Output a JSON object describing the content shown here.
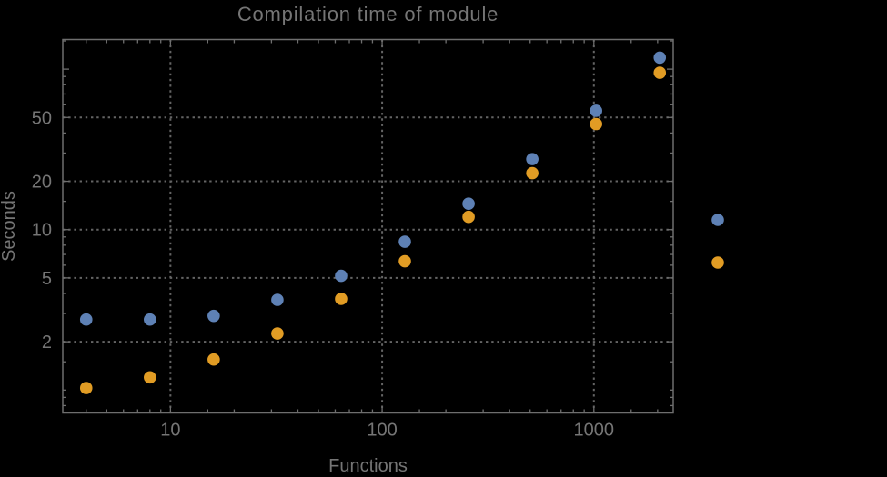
{
  "page": {
    "background": "#000000"
  },
  "chart_data": {
    "type": "scatter",
    "title": "Compilation time of module",
    "xlabel": "Functions",
    "ylabel": "Seconds",
    "x_scale": "log",
    "y_scale": "log",
    "xlim": [
      3.1,
      2370
    ],
    "ylim": [
      0.72,
      153
    ],
    "grid": "dotted",
    "legend_position": "right-middle",
    "x": [
      4,
      8,
      16,
      32,
      64,
      128,
      256,
      512,
      1024,
      2048
    ],
    "series": [
      {
        "name": "blue",
        "color": "#5E81B5",
        "values": [
          2.75,
          2.75,
          2.9,
          3.65,
          5.15,
          8.4,
          14.5,
          27.5,
          55,
          118
        ]
      },
      {
        "name": "orange",
        "color": "#E19C24",
        "values": [
          1.03,
          1.2,
          1.55,
          2.25,
          3.7,
          6.35,
          12,
          22.5,
          45.5,
          95
        ]
      }
    ],
    "x_ticks_major": [
      {
        "value": 10,
        "label": "10"
      },
      {
        "value": 100,
        "label": "100"
      },
      {
        "value": 1000,
        "label": "1000"
      }
    ],
    "x_ticks_minor": [
      4,
      5,
      6,
      7,
      8,
      9,
      15,
      20,
      30,
      40,
      50,
      60,
      70,
      80,
      90,
      150,
      200,
      300,
      400,
      500,
      600,
      700,
      800,
      900,
      1500,
      2000
    ],
    "y_ticks_major": [
      {
        "value": 2,
        "label": "2"
      },
      {
        "value": 5,
        "label": "5"
      },
      {
        "value": 10,
        "label": "10"
      },
      {
        "value": 20,
        "label": "20"
      },
      {
        "value": 50,
        "label": "50"
      },
      {
        "value": 100,
        "label": ""
      }
    ],
    "y_ticks_minor": [
      0.8,
      0.9,
      1,
      1.5,
      3,
      4,
      6,
      7,
      8,
      9,
      15,
      30,
      40,
      60,
      70,
      80,
      90,
      150
    ],
    "x_gridlines": [
      10,
      100,
      1000
    ],
    "y_gridlines": [
      2,
      5,
      10,
      20,
      50
    ],
    "legend": {
      "labels_visible": false,
      "markers": [
        {
          "series": "blue",
          "color": "#5E81B5"
        },
        {
          "series": "orange",
          "color": "#E19C24"
        }
      ]
    },
    "colors": {
      "frame": "#6E6E6E",
      "grid": "#646464",
      "text": "#757575",
      "background": "#000000"
    }
  }
}
